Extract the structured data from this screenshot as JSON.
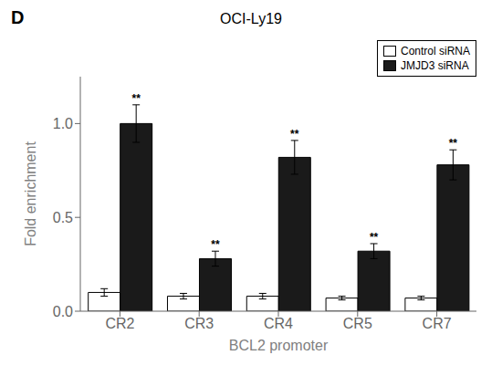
{
  "chart_data": {
    "type": "bar",
    "title": "OCI-Ly19",
    "xlabel": "BCL2 promoter",
    "ylabel": "Fold enrichment",
    "categories": [
      "CR2",
      "CR3",
      "CR4",
      "CR5",
      "CR7"
    ],
    "series": [
      {
        "name": "Control siRNA",
        "color": "#ffffff",
        "values": [
          0.1,
          0.08,
          0.08,
          0.07,
          0.07
        ],
        "errors": [
          0.02,
          0.015,
          0.015,
          0.01,
          0.01
        ]
      },
      {
        "name": "JMJD3 siRNA",
        "color": "#1a1a1a",
        "values": [
          1.0,
          0.28,
          0.82,
          0.32,
          0.78
        ],
        "errors": [
          0.1,
          0.04,
          0.09,
          0.04,
          0.08
        ],
        "significance": [
          "**",
          "**",
          "**",
          "**",
          "**"
        ]
      }
    ],
    "ylim": [
      0,
      1.25
    ],
    "yticks": [
      {
        "value": 0,
        "label": "0.0"
      },
      0.5,
      {
        "value": 1,
        "label": "1.0"
      }
    ],
    "grid": false,
    "legend": "upper right",
    "annotations": [
      "D"
    ]
  }
}
